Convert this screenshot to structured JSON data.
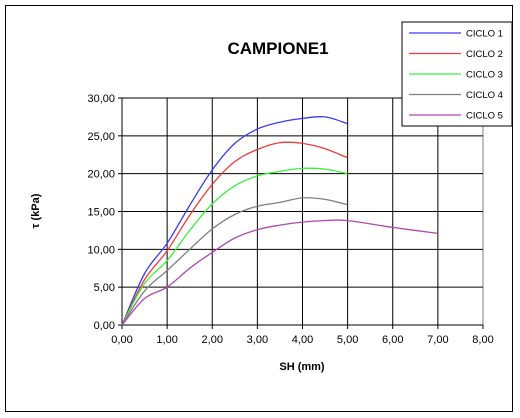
{
  "chart_data": {
    "type": "line",
    "title": "CAMPIONE1",
    "xlabel": "SH (mm)",
    "ylabel": "τ (kPa)",
    "xlim": [
      0,
      8
    ],
    "ylim": [
      0,
      30
    ],
    "x_ticks": [
      "0,00",
      "1,00",
      "2,00",
      "3,00",
      "4,00",
      "5,00",
      "6,00",
      "7,00",
      "8,00"
    ],
    "y_ticks": [
      "0,00",
      "5,00",
      "10,00",
      "15,00",
      "20,00",
      "25,00",
      "30,00"
    ],
    "grid": true,
    "legend_position": "top-right",
    "series": [
      {
        "name": "CICLO 1",
        "color": "#3a3af0",
        "points": [
          [
            0,
            0
          ],
          [
            0.5,
            6.8
          ],
          [
            1.0,
            10.8
          ],
          [
            1.5,
            15.8
          ],
          [
            2.0,
            20.5
          ],
          [
            2.5,
            24.0
          ],
          [
            3.0,
            25.9
          ],
          [
            3.5,
            26.8
          ],
          [
            4.0,
            27.3
          ],
          [
            4.5,
            27.5
          ],
          [
            5.0,
            26.6
          ]
        ]
      },
      {
        "name": "CICLO 2",
        "color": "#f03a3a",
        "points": [
          [
            0,
            0
          ],
          [
            0.5,
            6.0
          ],
          [
            1.0,
            9.8
          ],
          [
            1.5,
            14.5
          ],
          [
            2.0,
            18.6
          ],
          [
            2.5,
            21.6
          ],
          [
            3.0,
            23.2
          ],
          [
            3.5,
            24.1
          ],
          [
            4.0,
            24.0
          ],
          [
            4.5,
            23.3
          ],
          [
            5.0,
            22.1
          ]
        ]
      },
      {
        "name": "CICLO 3",
        "color": "#3af03a",
        "points": [
          [
            0,
            0
          ],
          [
            0.5,
            5.5
          ],
          [
            1.0,
            8.5
          ],
          [
            1.5,
            12.5
          ],
          [
            2.0,
            16.0
          ],
          [
            2.5,
            18.4
          ],
          [
            3.0,
            19.7
          ],
          [
            3.5,
            20.3
          ],
          [
            4.0,
            20.7
          ],
          [
            4.5,
            20.6
          ],
          [
            5.0,
            20.0
          ]
        ]
      },
      {
        "name": "CICLO 4",
        "color": "#808080",
        "points": [
          [
            0,
            0
          ],
          [
            0.5,
            4.5
          ],
          [
            1.0,
            7.2
          ],
          [
            1.5,
            10.0
          ],
          [
            2.0,
            12.7
          ],
          [
            2.5,
            14.6
          ],
          [
            3.0,
            15.7
          ],
          [
            3.5,
            16.2
          ],
          [
            4.0,
            16.8
          ],
          [
            4.5,
            16.6
          ],
          [
            5.0,
            15.9
          ]
        ]
      },
      {
        "name": "CICLO 5",
        "color": "#b048b0",
        "points": [
          [
            0,
            0
          ],
          [
            0.5,
            3.5
          ],
          [
            1.0,
            5.0
          ],
          [
            1.5,
            7.5
          ],
          [
            2.0,
            9.6
          ],
          [
            2.5,
            11.5
          ],
          [
            3.0,
            12.6
          ],
          [
            3.5,
            13.2
          ],
          [
            4.0,
            13.6
          ],
          [
            4.5,
            13.8
          ],
          [
            5.0,
            13.8
          ],
          [
            6.0,
            12.9
          ],
          [
            7.0,
            12.1
          ]
        ]
      }
    ]
  }
}
